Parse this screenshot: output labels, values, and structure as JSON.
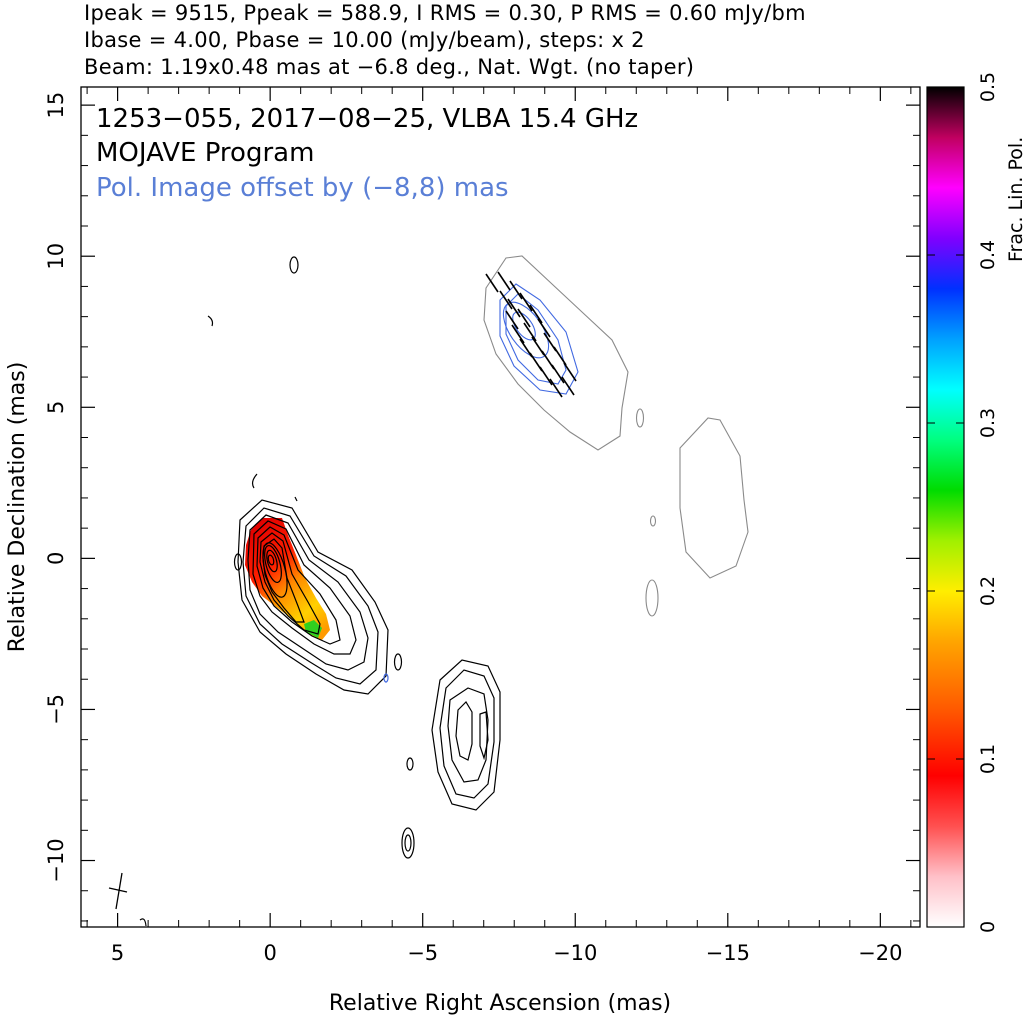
{
  "header": {
    "line1": "Ipeak = 9515, Ppeak = 588.9, I RMS = 0.30, P RMS = 0.60 mJy/bm",
    "line2": "Ibase = 4.00, Pbase = 10.00 (mJy/beam), steps: x 2",
    "line3": "Beam: 1.19x0.48 mas at −6.8 deg., Nat. Wgt. (no taper)"
  },
  "annotations": {
    "source": "1253−055, 2017−08−25, VLBA 15.4 GHz",
    "program": "MOJAVE Program",
    "offset": "Pol. Image offset by (−8,8) mas",
    "offset_color": "#5a7fd6"
  },
  "colors": {
    "stokes_i_contour": "#000000",
    "pol_contour": "#4169e1",
    "outer_contour": "#8a8a8a"
  },
  "chart_data": {
    "type": "contour",
    "xlabel": "Relative Right Ascension (mas)",
    "ylabel": "Relative Declination (mas)",
    "xlim": [
      6.2,
      -21.3
    ],
    "ylim": [
      -12.2,
      15.6
    ],
    "xticks": [
      5,
      0,
      -5,
      -10,
      -15,
      -20
    ],
    "xtick_labels": [
      "5",
      "0",
      "−5",
      "−10",
      "−15",
      "−20"
    ],
    "yticks": [
      -10,
      -5,
      0,
      5,
      10,
      15
    ],
    "ytick_labels": [
      "−10",
      "−5",
      "0",
      "5",
      "10",
      "15"
    ],
    "colorbar": {
      "label": "Frac. Lin. Pol.",
      "range": [
        0,
        0.5
      ],
      "ticks": [
        0,
        0.1,
        0.2,
        0.3,
        0.4,
        0.5
      ],
      "tick_labels": [
        "0",
        "0.1",
        "0.2",
        "0.3",
        "0.4",
        "0.5"
      ]
    },
    "core": {
      "x": 0,
      "y": 0
    },
    "jet_knot": {
      "x": -6.5,
      "y": -6
    },
    "pol_offset_image_peak": {
      "x": -8.3,
      "y": 7.7
    },
    "beam": {
      "major_mas": 1.19,
      "minor_mas": 0.48,
      "pa_deg": -6.8
    }
  }
}
